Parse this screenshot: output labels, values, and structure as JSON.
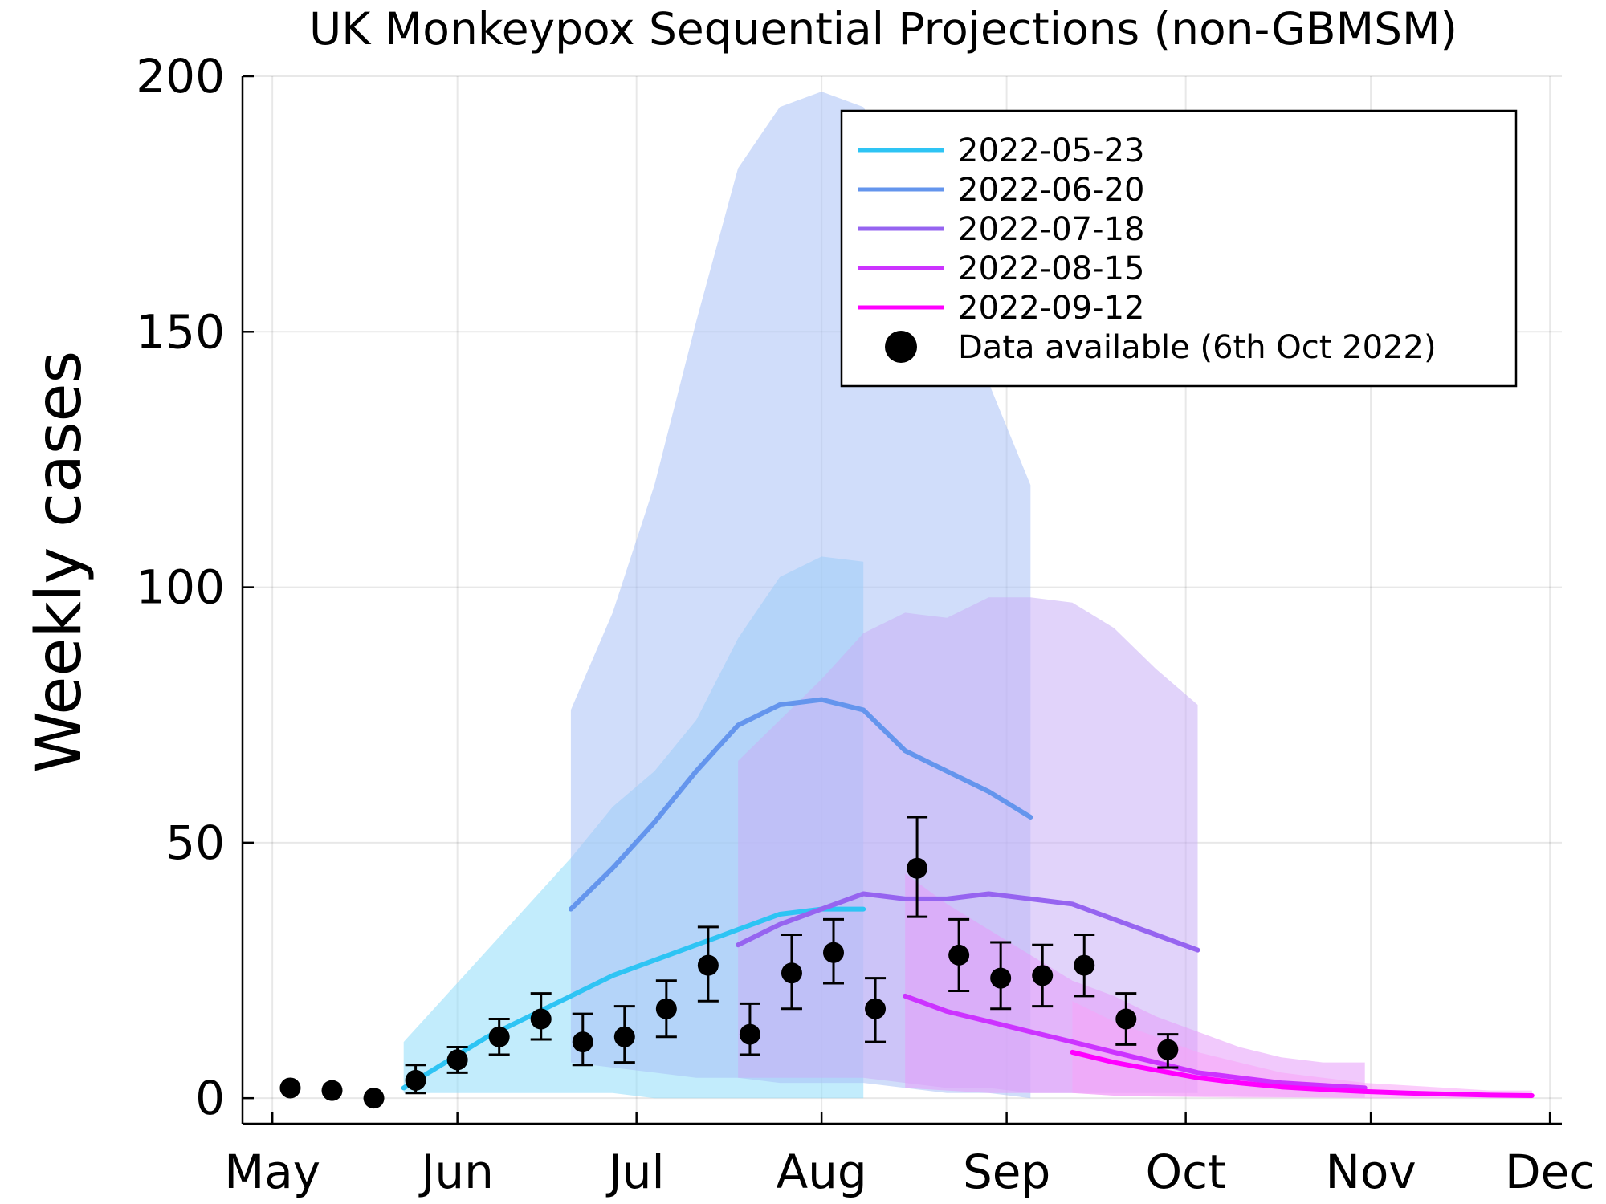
{
  "chart_data": {
    "type": "line",
    "title": "UK Monkeypox Sequential Projections (non-GBMSM)",
    "xlabel": "",
    "ylabel": "Weekly cases",
    "ylim": [
      -5,
      200
    ],
    "xlim": [
      "2022-04-26",
      "2022-12-03"
    ],
    "xticks": [
      {
        "date": "2022-05-01",
        "label": "May"
      },
      {
        "date": "2022-06-01",
        "label": "Jun"
      },
      {
        "date": "2022-07-01",
        "label": "Jul"
      },
      {
        "date": "2022-08-01",
        "label": "Aug"
      },
      {
        "date": "2022-09-01",
        "label": "Sep"
      },
      {
        "date": "2022-10-01",
        "label": "Oct"
      },
      {
        "date": "2022-11-01",
        "label": "Nov"
      },
      {
        "date": "2022-12-01",
        "label": "Dec"
      }
    ],
    "yticks": [
      0,
      50,
      100,
      150,
      200
    ],
    "grid": true,
    "legend_position": "top-right",
    "series": [
      {
        "name": "2022-05-23",
        "color": "#2ec4f4",
        "band_color": "#8fddf9",
        "x": [
          "2022-05-23",
          "2022-05-30",
          "2022-06-06",
          "2022-06-13",
          "2022-06-20",
          "2022-06-27",
          "2022-07-04",
          "2022-07-11",
          "2022-07-18",
          "2022-07-25",
          "2022-08-01",
          "2022-08-08"
        ],
        "y": [
          2,
          7,
          12,
          16,
          20,
          24,
          27,
          30,
          33,
          36,
          37,
          37
        ],
        "lower": [
          1,
          1,
          1,
          1,
          1,
          1,
          0,
          0,
          0,
          0,
          0,
          0
        ],
        "upper": [
          11,
          20,
          29,
          38,
          47,
          57,
          64,
          74,
          90,
          102,
          106,
          105
        ]
      },
      {
        "name": "2022-06-20",
        "color": "#6495ed",
        "band_color": "#a9c1f5",
        "x": [
          "2022-06-20",
          "2022-06-27",
          "2022-07-04",
          "2022-07-11",
          "2022-07-18",
          "2022-07-25",
          "2022-08-01",
          "2022-08-08",
          "2022-08-15",
          "2022-08-22",
          "2022-08-29",
          "2022-09-05"
        ],
        "y": [
          37,
          45,
          54,
          64,
          73,
          77,
          78,
          76,
          68,
          64,
          60,
          55
        ],
        "lower": [
          7,
          6,
          5,
          4,
          4,
          3,
          3,
          3,
          2,
          1,
          1,
          0
        ],
        "upper": [
          76,
          95,
          120,
          152,
          182,
          194,
          197,
          194,
          180,
          160,
          140,
          120
        ]
      },
      {
        "name": "2022-07-18",
        "color": "#9664f0",
        "band_color": "#c8aef6",
        "x": [
          "2022-07-18",
          "2022-07-25",
          "2022-08-01",
          "2022-08-08",
          "2022-08-15",
          "2022-08-22",
          "2022-08-29",
          "2022-09-05",
          "2022-09-12",
          "2022-09-19",
          "2022-09-26",
          "2022-10-03"
        ],
        "y": [
          30,
          34,
          37,
          40,
          39,
          39,
          40,
          39,
          38,
          35,
          32,
          29
        ],
        "lower": [
          4,
          4,
          4,
          4,
          3,
          2,
          2,
          1,
          1,
          1,
          1,
          1
        ],
        "upper": [
          66,
          74,
          82,
          91,
          95,
          94,
          98,
          98,
          97,
          92,
          84,
          77
        ]
      },
      {
        "name": "2022-08-15",
        "color": "#cc33ff",
        "band_color": "#e59cf9",
        "x": [
          "2022-08-15",
          "2022-08-22",
          "2022-08-29",
          "2022-09-05",
          "2022-09-12",
          "2022-09-19",
          "2022-09-26",
          "2022-10-03",
          "2022-10-10",
          "2022-10-17",
          "2022-10-24",
          "2022-10-31"
        ],
        "y": [
          20,
          17,
          15,
          13,
          11,
          9,
          7,
          5,
          4,
          3,
          2.5,
          2
        ],
        "lower": [
          2,
          1.5,
          1,
          1,
          1,
          0.5,
          0.5,
          0.5,
          0.3,
          0.2,
          0.1,
          0.1
        ],
        "upper": [
          44,
          38,
          33,
          28,
          23,
          20,
          16,
          13,
          10,
          8,
          7,
          7
        ]
      },
      {
        "name": "2022-09-12",
        "color": "#ff00ff",
        "band_color": "#f7a3f7",
        "x": [
          "2022-09-12",
          "2022-09-19",
          "2022-09-26",
          "2022-10-03",
          "2022-10-10",
          "2022-10-17",
          "2022-10-24",
          "2022-10-31",
          "2022-11-07",
          "2022-11-14",
          "2022-11-21",
          "2022-11-28"
        ],
        "y": [
          9,
          7,
          5.5,
          4,
          3,
          2.2,
          1.7,
          1.3,
          1,
          0.8,
          0.6,
          0.5
        ],
        "lower": [
          1,
          0.5,
          0.3,
          0.2,
          0.1,
          0.1,
          0.1,
          0,
          0,
          0,
          0,
          0
        ],
        "upper": [
          19,
          15,
          12,
          9,
          7,
          5,
          4,
          3,
          2.5,
          2,
          1.5,
          1.5
        ]
      }
    ],
    "observations": {
      "name": "Data available (6th Oct 2022)",
      "color": "#000000",
      "points": [
        {
          "x": "2022-05-04",
          "y": 2
        },
        {
          "x": "2022-05-11",
          "y": 1.5
        },
        {
          "x": "2022-05-18",
          "y": 0
        },
        {
          "x": "2022-05-25",
          "y": 3.5,
          "lo": 1,
          "hi": 6.5
        },
        {
          "x": "2022-06-01",
          "y": 7.5,
          "lo": 5,
          "hi": 10
        },
        {
          "x": "2022-06-08",
          "y": 12,
          "lo": 8.5,
          "hi": 15.5
        },
        {
          "x": "2022-06-15",
          "y": 15.5,
          "lo": 11.5,
          "hi": 20.5
        },
        {
          "x": "2022-06-22",
          "y": 11,
          "lo": 6.5,
          "hi": 16.5
        },
        {
          "x": "2022-06-29",
          "y": 12,
          "lo": 7,
          "hi": 18
        },
        {
          "x": "2022-07-06",
          "y": 17.5,
          "lo": 12,
          "hi": 23
        },
        {
          "x": "2022-07-13",
          "y": 26,
          "lo": 19,
          "hi": 33.5
        },
        {
          "x": "2022-07-20",
          "y": 12.5,
          "lo": 8.5,
          "hi": 18.5
        },
        {
          "x": "2022-07-27",
          "y": 24.5,
          "lo": 17.5,
          "hi": 32
        },
        {
          "x": "2022-08-03",
          "y": 28.5,
          "lo": 22.5,
          "hi": 35
        },
        {
          "x": "2022-08-10",
          "y": 17.5,
          "lo": 11,
          "hi": 23.5
        },
        {
          "x": "2022-08-17",
          "y": 45,
          "lo": 35.5,
          "hi": 55
        },
        {
          "x": "2022-08-24",
          "y": 28,
          "lo": 21,
          "hi": 35
        },
        {
          "x": "2022-08-31",
          "y": 23.5,
          "lo": 17.5,
          "hi": 30.5
        },
        {
          "x": "2022-09-07",
          "y": 24,
          "lo": 18,
          "hi": 30
        },
        {
          "x": "2022-09-14",
          "y": 26,
          "lo": 20,
          "hi": 32
        },
        {
          "x": "2022-09-21",
          "y": 15.5,
          "lo": 10.5,
          "hi": 20.5
        },
        {
          "x": "2022-09-28",
          "y": 9.5,
          "lo": 6,
          "hi": 12.5
        }
      ]
    }
  }
}
